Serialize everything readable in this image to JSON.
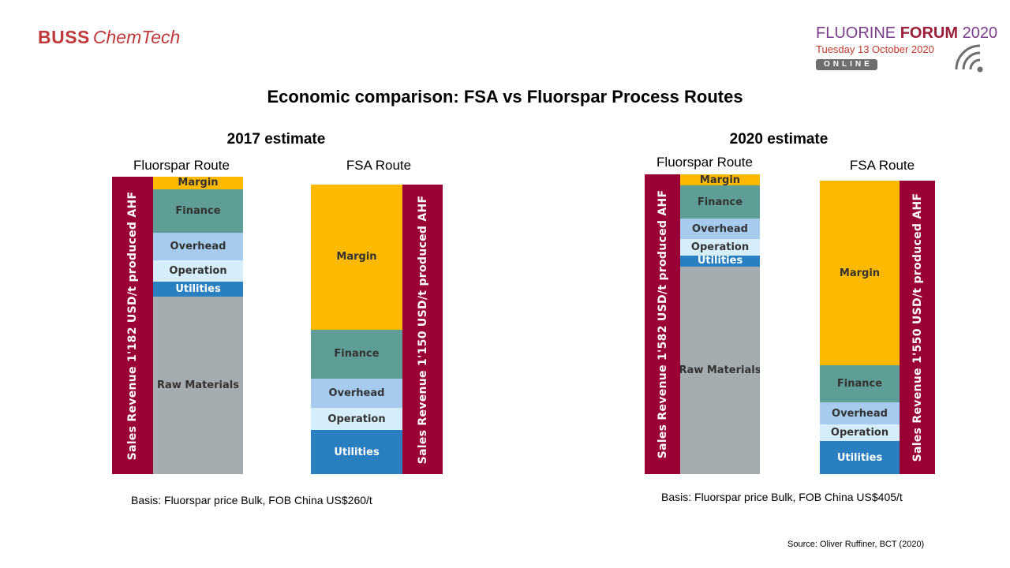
{
  "header": {
    "logo_brand": "BUSS",
    "logo_sub": "ChemTech",
    "forum_prefix": "FLUORINE ",
    "forum_highlight": "FORUM",
    "forum_year": " 2020",
    "forum_date": "Tuesday 13 October 2020",
    "forum_mode": "ONLINE"
  },
  "title": "Economic comparison: FSA vs Fluorspar Process Routes",
  "source": "Source: Oliver Ruffiner, BCT (2020)",
  "colors": {
    "revenue": "#9b0034",
    "Margin": "#fdb900",
    "Finance": "#5f9d97",
    "Overhead": "#a6cbef",
    "Operation": "#d6eef9",
    "Utilities": "#2a7fc1",
    "Raw Materials": "#a4acb0"
  },
  "chart_data": [
    {
      "type": "stacked-bar",
      "title": "2017 estimate",
      "basis": "Basis: Fluorspar price Bulk, FOB China US$260/t",
      "routes": [
        {
          "name": "Fluorspar Route",
          "revenue_label": "Sales Revenue 1'182 USD/t produced AHF",
          "revenue": 1182,
          "segments": [
            {
              "label": "Margin",
              "value": 50
            },
            {
              "label": "Finance",
              "value": 174
            },
            {
              "label": "Overhead",
              "value": 107
            },
            {
              "label": "Operation",
              "value": 86
            },
            {
              "label": "Utilities",
              "value": 60
            },
            {
              "label": "Raw Materials",
              "value": 705
            }
          ]
        },
        {
          "name": "FSA Route",
          "revenue_label": "Sales Revenue 1'150 USD/t produced AHF",
          "revenue": 1150,
          "segments": [
            {
              "label": "Margin",
              "value": 575
            },
            {
              "label": "Finance",
              "value": 196
            },
            {
              "label": "Overhead",
              "value": 115
            },
            {
              "label": "Operation",
              "value": 90
            },
            {
              "label": "Utilities",
              "value": 174
            }
          ]
        }
      ]
    },
    {
      "type": "stacked-bar",
      "title": "2020 estimate",
      "basis": "Basis: Fluorspar price Bulk, FOB China US$405/t",
      "routes": [
        {
          "name": "Fluorspar Route",
          "revenue_label": "Sales Revenue 1'582 USD/t produced AHF",
          "revenue": 1582,
          "segments": [
            {
              "label": "Margin",
              "value": 59
            },
            {
              "label": "Finance",
              "value": 175
            },
            {
              "label": "Overhead",
              "value": 109
            },
            {
              "label": "Operation",
              "value": 84
            },
            {
              "label": "Utilities",
              "value": 59
            },
            {
              "label": "Raw Materials",
              "value": 1096
            }
          ]
        },
        {
          "name": "FSA Route",
          "revenue_label": "Sales Revenue 1'550 USD/t produced AHF",
          "revenue": 1550,
          "segments": [
            {
              "label": "Margin",
              "value": 976
            },
            {
              "label": "Finance",
              "value": 196
            },
            {
              "label": "Overhead",
              "value": 117
            },
            {
              "label": "Operation",
              "value": 88
            },
            {
              "label": "Utilities",
              "value": 173
            }
          ]
        }
      ]
    }
  ]
}
